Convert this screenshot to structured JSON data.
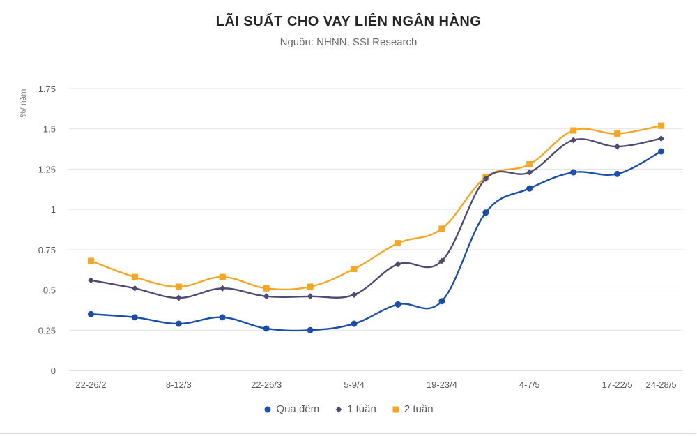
{
  "chart_data": {
    "type": "line",
    "title": "LÃI SUẤT CHO VAY LIÊN NGÂN HÀNG",
    "subtitle": "Nguồn: NHNN, SSI Research",
    "ylabel": "%/ năm",
    "ylim": [
      0,
      1.75
    ],
    "yticks": [
      "0",
      "0.25",
      "0.5",
      "0.75",
      "1",
      "1.25",
      "1.5",
      "1.75"
    ],
    "ytick_values": [
      0,
      0.25,
      0.5,
      0.75,
      1,
      1.25,
      1.5,
      1.75
    ],
    "categories": [
      "22-26/2",
      "",
      "8-12/3",
      "",
      "22-26/3",
      "",
      "5-9/4",
      "",
      "19-23/4",
      "",
      "4-7/5",
      "",
      "17-22/5",
      "24-28/5"
    ],
    "grid": "horizontal",
    "legend": "bottom",
    "series": [
      {
        "name": "Qua đêm",
        "color": "#1a4ea8",
        "marker": "circle",
        "values": [
          0.35,
          0.33,
          0.29,
          0.33,
          0.26,
          0.25,
          0.29,
          0.41,
          0.43,
          0.98,
          1.13,
          1.23,
          1.22,
          1.36
        ]
      },
      {
        "name": "1 tuần",
        "color": "#4f4a73",
        "marker": "diamond",
        "values": [
          0.56,
          0.51,
          0.45,
          0.51,
          0.46,
          0.46,
          0.47,
          0.66,
          0.68,
          1.19,
          1.23,
          1.43,
          1.39,
          1.44
        ]
      },
      {
        "name": "2 tuần",
        "color": "#f5a623",
        "marker": "square",
        "values": [
          0.68,
          0.58,
          0.52,
          0.58,
          0.51,
          0.52,
          0.63,
          0.79,
          0.88,
          1.2,
          1.28,
          1.49,
          1.47,
          1.52
        ]
      }
    ]
  }
}
